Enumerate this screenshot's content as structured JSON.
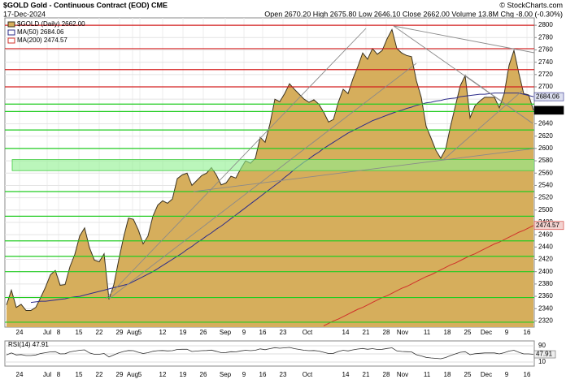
{
  "chart_data": {
    "type": "area",
    "title": "$GOLD Gold - Continuous Contract (EOD) CME",
    "date": "17-Dec-2024",
    "credit": "© StockCharts.com",
    "quote": "Open 2670.20 High 2675.80 Low 2646.10 Close 2662.00 Volume 13.8M Chg -8.00 (-0.30%)",
    "xlabels": [
      "24",
      "Jul",
      "8",
      "15",
      "22",
      "29",
      "Aug",
      "5",
      "12",
      "19",
      "26",
      "Sep",
      "9",
      "16",
      "23",
      "Oct",
      "14",
      "21",
      "28",
      "Nov",
      "11",
      "18",
      "25",
      "Dec",
      "9",
      "16"
    ],
    "ylim": [
      2310,
      2812
    ],
    "yticks": [
      2320,
      2340,
      2360,
      2380,
      2400,
      2420,
      2440,
      2460,
      2480,
      2500,
      2520,
      2540,
      2560,
      2580,
      2600,
      2620,
      2640,
      2660,
      2680,
      2700,
      2720,
      2740,
      2760,
      2780,
      2800
    ],
    "series": [
      {
        "name": "$GOLD (Daily)",
        "last_label": "2662.00",
        "color": "#d6ae5c",
        "line_color": "#3a3220",
        "values": [
          2346,
          2370,
          2342,
          2347,
          2337,
          2337,
          2342,
          2358,
          2375,
          2395,
          2402,
          2378,
          2379,
          2408,
          2428,
          2458,
          2471,
          2439,
          2419,
          2416,
          2429,
          2355,
          2379,
          2419,
          2456,
          2487,
          2485,
          2468,
          2445,
          2458,
          2490,
          2508,
          2515,
          2511,
          2518,
          2551,
          2557,
          2560,
          2540,
          2548,
          2556,
          2560,
          2569,
          2557,
          2541,
          2544,
          2555,
          2552,
          2567,
          2580,
          2576,
          2584,
          2618,
          2610,
          2640,
          2680,
          2676,
          2689,
          2705,
          2696,
          2688,
          2680,
          2675,
          2679,
          2672,
          2659,
          2643,
          2647,
          2675,
          2696,
          2689,
          2713,
          2733,
          2755,
          2745,
          2762,
          2753,
          2759,
          2778,
          2793,
          2762,
          2755,
          2751,
          2749,
          2710,
          2683,
          2636,
          2617,
          2597,
          2584,
          2599,
          2636,
          2669,
          2702,
          2718,
          2650,
          2669,
          2677,
          2683,
          2683,
          2683,
          2666,
          2689,
          2735,
          2759,
          2722,
          2689,
          2687,
          2662
        ]
      },
      {
        "name": "MA(50)",
        "last_label": "2684.06",
        "color": "#2c2c8a",
        "values": [
          null,
          null,
          null,
          null,
          null,
          2350,
          2351,
          2352,
          2352,
          2353,
          2354,
          2355,
          2356,
          2358,
          2359,
          2360,
          2362,
          2364,
          2366,
          2368,
          2370,
          2372,
          2374,
          2376,
          2378,
          2380,
          2384,
          2388,
          2392,
          2396,
          2400,
          2405,
          2410,
          2415,
          2420,
          2425,
          2430,
          2436,
          2441,
          2447,
          2452,
          2458,
          2463,
          2469,
          2474,
          2480,
          2486,
          2492,
          2498,
          2504,
          2510,
          2516,
          2522,
          2528,
          2534,
          2540,
          2546,
          2553,
          2559,
          2566,
          2572,
          2578,
          2583,
          2589,
          2594,
          2600,
          2605,
          2610,
          2615,
          2620,
          2625,
          2629,
          2633,
          2637,
          2641,
          2645,
          2648,
          2651,
          2654,
          2657,
          2660,
          2662,
          2665,
          2667,
          2670,
          2672,
          2674,
          2675,
          2677,
          2678,
          2680,
          2681,
          2682,
          2684,
          2685,
          2686,
          2687,
          2688,
          2688,
          2689,
          2690,
          2690,
          2690,
          2690,
          2690,
          2690,
          2688,
          2686,
          2684
        ]
      },
      {
        "name": "MA(200)",
        "last_label": "2474.57",
        "color": "#d0302a",
        "values": [
          null,
          null,
          null,
          null,
          null,
          null,
          null,
          null,
          null,
          null,
          null,
          null,
          null,
          null,
          null,
          null,
          null,
          null,
          null,
          null,
          null,
          null,
          null,
          null,
          null,
          null,
          null,
          null,
          null,
          null,
          null,
          null,
          null,
          null,
          null,
          null,
          null,
          null,
          null,
          null,
          null,
          null,
          null,
          null,
          null,
          null,
          null,
          null,
          null,
          null,
          null,
          null,
          null,
          null,
          null,
          null,
          null,
          null,
          null,
          null,
          null,
          null,
          null,
          null,
          null,
          2312,
          2316,
          2320,
          2323,
          2327,
          2331,
          2335,
          2339,
          2342,
          2346,
          2350,
          2354,
          2358,
          2361,
          2365,
          2369,
          2373,
          2376,
          2380,
          2384,
          2388,
          2392,
          2395,
          2399,
          2403,
          2407,
          2411,
          2414,
          2418,
          2422,
          2426,
          2429,
          2433,
          2437,
          2441,
          2445,
          2448,
          2452,
          2456,
          2460,
          2464,
          2467,
          2471,
          2475
        ]
      }
    ],
    "hlines": [
      {
        "value": 2800,
        "color": "#d42020"
      },
      {
        "value": 2762,
        "color": "#d42020"
      },
      {
        "value": 2728,
        "color": "#d42020"
      },
      {
        "value": 2700,
        "color": "#d42020"
      },
      {
        "value": 2672,
        "color": "#22cc22"
      },
      {
        "value": 2660,
        "color": "#22cc22"
      },
      {
        "value": 2630,
        "color": "#22cc22"
      },
      {
        "value": 2600,
        "color": "#22cc22"
      },
      {
        "value": 2530,
        "color": "#22cc22"
      },
      {
        "value": 2490,
        "color": "#22cc22"
      },
      {
        "value": 2450,
        "color": "#22cc22"
      },
      {
        "value": 2425,
        "color": "#22cc22"
      },
      {
        "value": 2400,
        "color": "#22cc22"
      },
      {
        "value": 2358,
        "color": "#22cc22"
      },
      {
        "value": 2318,
        "color": "#22cc22"
      }
    ],
    "band": [
      2564,
      2582
    ],
    "band_color": "#8ef08e",
    "rsi": {
      "name": "RSI(14)",
      "last_label": "47.91",
      "color": "#333333",
      "ylim": [
        0,
        100
      ],
      "yticks": [
        10,
        50,
        90
      ],
      "values": [
        45,
        55,
        45,
        47,
        42,
        42,
        45,
        52,
        56,
        60,
        61,
        50,
        51,
        60,
        64,
        68,
        70,
        55,
        48,
        48,
        52,
        35,
        45,
        55,
        62,
        67,
        66,
        58,
        52,
        56,
        63,
        66,
        67,
        65,
        66,
        72,
        73,
        73,
        62,
        64,
        66,
        67,
        69,
        63,
        56,
        57,
        61,
        60,
        65,
        68,
        66,
        68,
        75,
        71,
        76,
        81,
        78,
        80,
        82,
        76,
        72,
        68,
        66,
        67,
        64,
        58,
        52,
        53,
        62,
        68,
        65,
        70,
        74,
        77,
        73,
        76,
        72,
        73,
        77,
        80,
        65,
        62,
        61,
        60,
        46,
        40,
        33,
        30,
        28,
        26,
        32,
        42,
        50,
        58,
        61,
        46,
        51,
        53,
        55,
        55,
        55,
        50,
        56,
        64,
        68,
        58,
        50,
        50,
        47.91
      ]
    }
  }
}
